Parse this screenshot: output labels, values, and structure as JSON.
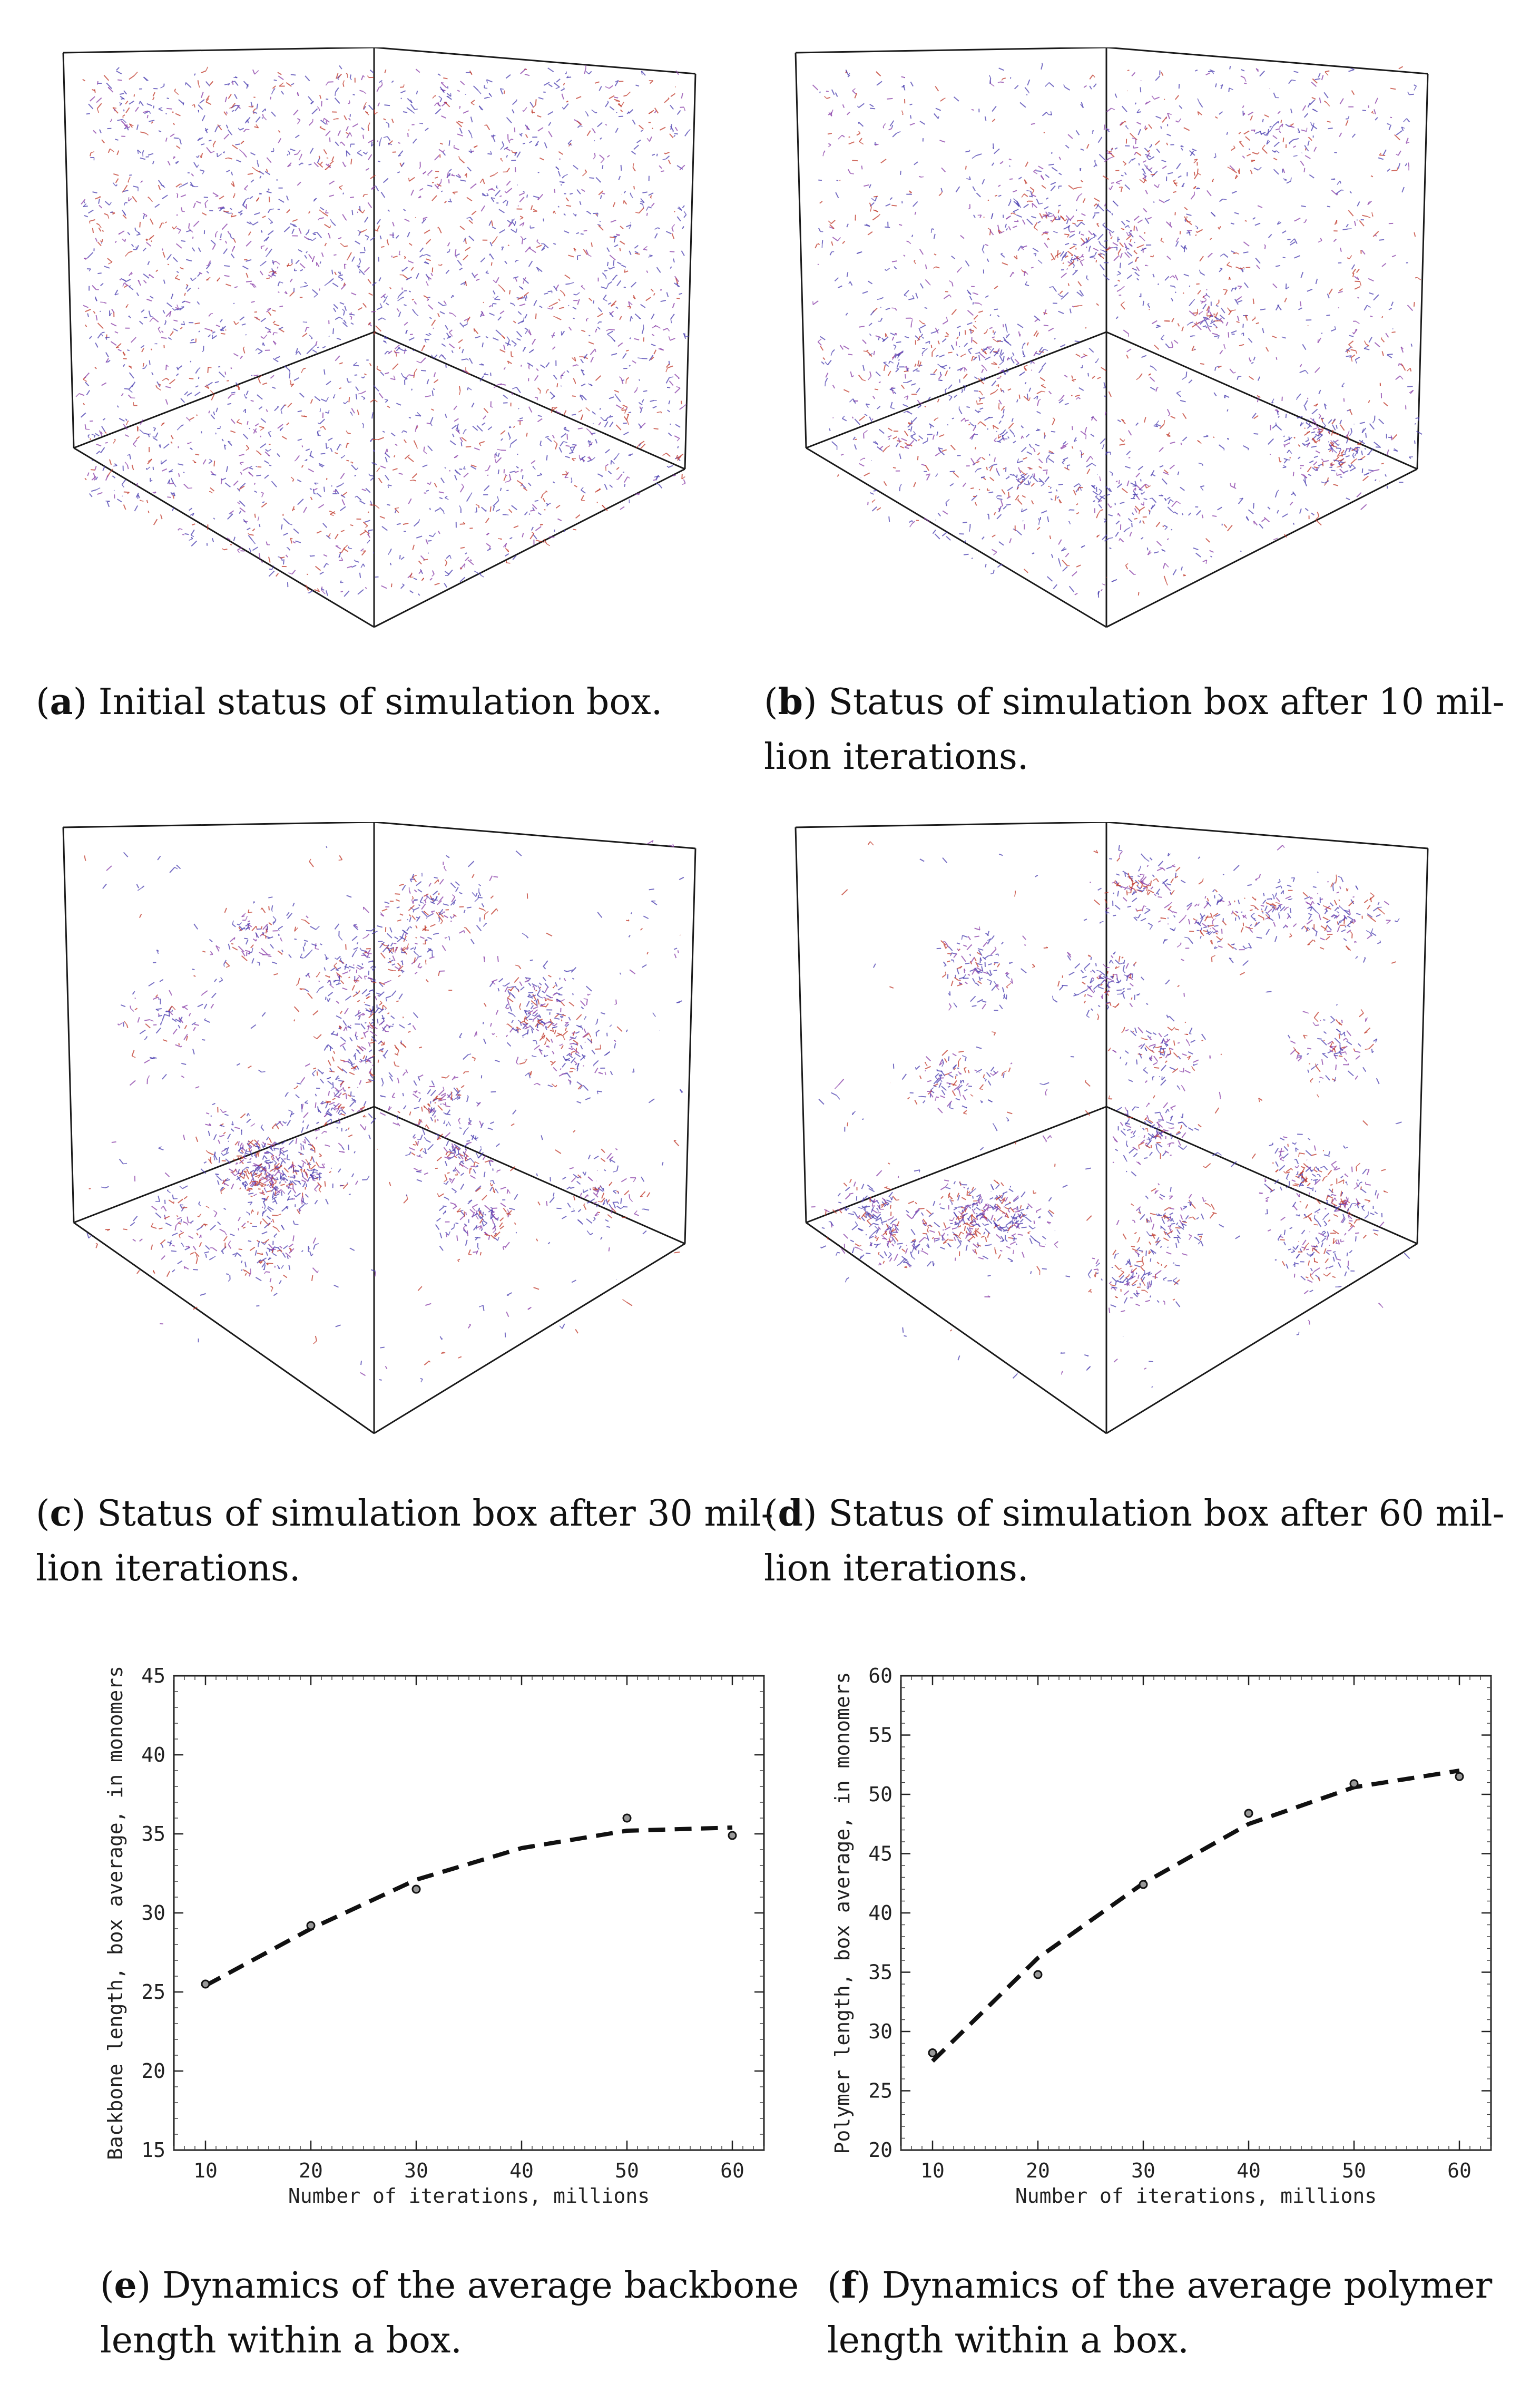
{
  "captions": {
    "a": {
      "letter": "a",
      "text": "Initial status of simulation box."
    },
    "b": {
      "letter": "b",
      "text_line1": "Status of simulation box after 10 mil-",
      "text_line2": "lion iterations."
    },
    "c": {
      "letter": "c",
      "text_line1": "Status of simulation box after 30 mil-",
      "text_line2": "lion iterations."
    },
    "d": {
      "letter": "d",
      "text_line1": "Status of simulation box after 60 mil-",
      "text_line2": "lion iterations."
    },
    "e": {
      "letter": "e",
      "text_line1": "Dynamics of the average backbone",
      "text_line2": "length within a box."
    },
    "f": {
      "letter": "f",
      "text_line1": "Dynamics of the average polymer",
      "text_line2": "length within a box."
    }
  },
  "colors": {
    "particle_primary": "#4b3fb0",
    "particle_secondary": "#8a3fa8",
    "particle_accent": "#c0392b",
    "box_edge": "#1a1a1a"
  },
  "simulation_panels": [
    {
      "id": "a",
      "iterations_millions": 0,
      "clustering": "uniform"
    },
    {
      "id": "b",
      "iterations_millions": 10,
      "clustering": "weak"
    },
    {
      "id": "c",
      "iterations_millions": 30,
      "clustering": "strong"
    },
    {
      "id": "d",
      "iterations_millions": 60,
      "clustering": "very strong"
    }
  ],
  "chart_data": [
    {
      "type": "line",
      "id": "e",
      "xlabel": "Number of iterations, millions",
      "ylabel": "Backbone length, box average, in monomers",
      "xlim": [
        7,
        63
      ],
      "ylim": [
        15,
        45
      ],
      "xticks": [
        10,
        20,
        30,
        40,
        50,
        60
      ],
      "yticks": [
        15,
        20,
        25,
        30,
        35,
        40,
        45
      ],
      "series": [
        {
          "name": "fit",
          "style": "dashed",
          "x": [
            10,
            20,
            30,
            40,
            50,
            60
          ],
          "values": [
            25.4,
            29.0,
            32.1,
            34.1,
            35.2,
            35.4
          ]
        },
        {
          "name": "measured",
          "style": "markers",
          "x": [
            10,
            20,
            30,
            50,
            60
          ],
          "values": [
            25.5,
            29.2,
            31.5,
            36.0,
            34.9
          ]
        }
      ]
    },
    {
      "type": "line",
      "id": "f",
      "xlabel": "Number of iterations, millions",
      "ylabel": "Polymer length, box average, in monomers",
      "xlim": [
        7,
        63
      ],
      "ylim": [
        20,
        60
      ],
      "xticks": [
        10,
        20,
        30,
        40,
        50,
        60
      ],
      "yticks": [
        20,
        25,
        30,
        35,
        40,
        45,
        50,
        55,
        60
      ],
      "series": [
        {
          "name": "fit",
          "style": "dashed",
          "x": [
            10,
            20,
            30,
            40,
            50,
            60
          ],
          "values": [
            27.5,
            36.2,
            42.5,
            47.5,
            50.6,
            52.0
          ]
        },
        {
          "name": "measured",
          "style": "markers",
          "x": [
            10,
            20,
            30,
            40,
            50,
            60
          ],
          "values": [
            28.2,
            34.8,
            42.4,
            48.4,
            50.9,
            51.5
          ]
        }
      ]
    }
  ]
}
